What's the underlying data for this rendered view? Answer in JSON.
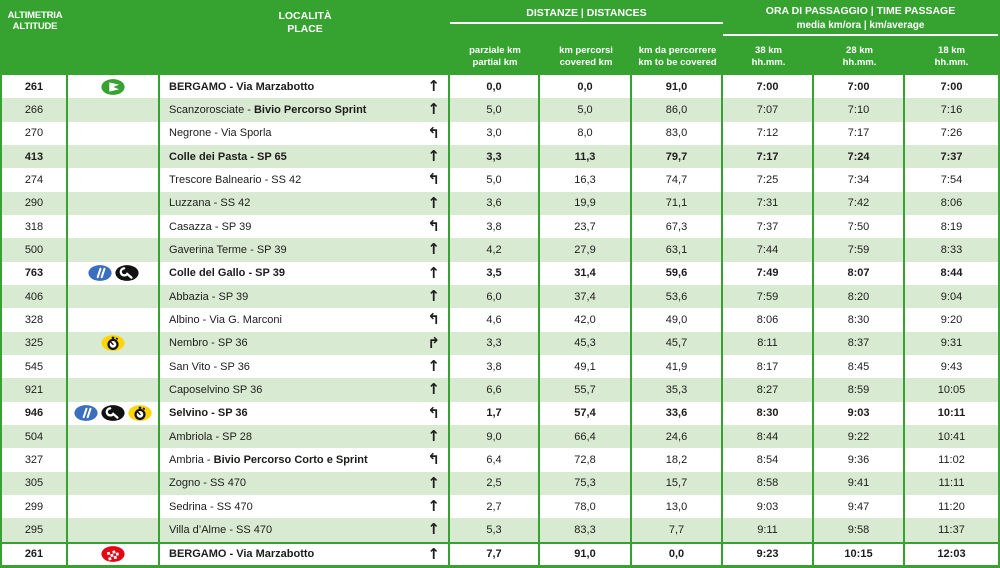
{
  "header": {
    "altitude": {
      "line1": "ALTIMETRIA",
      "line2": "ALTITUDE"
    },
    "place": {
      "line1": "LOCALITÀ",
      "line2": "PLACE"
    },
    "distances": {
      "title": "DISTANZE | DISTANCES",
      "cols": [
        {
          "l1": "parziale km",
          "l2": "partial km"
        },
        {
          "l1": "km percorsi",
          "l2": "covered km"
        },
        {
          "l1": "km da percorrere",
          "l2": "km to be covered"
        }
      ]
    },
    "times": {
      "title": "ORA DI PASSAGGIO | TIME PASSAGE",
      "subtitle": "media km/ora | km/average",
      "cols": [
        {
          "l1": "38 km",
          "l2": "hh.mm."
        },
        {
          "l1": "28 km",
          "l2": "hh.mm."
        },
        {
          "l1": "18 km",
          "l2": "hh.mm."
        }
      ]
    }
  },
  "icons": {
    "arrows": {
      "straight": "↑",
      "turn-left": "↰",
      "turn-right": "↱"
    },
    "badges": {
      "start": "start-flag-icon",
      "refreshment": "refreshment-icon",
      "mechanical": "mechanical-assistance-icon",
      "timing": "timing-icon",
      "finish": "finish-flag-icon"
    }
  },
  "colors": {
    "header_green": "#36a331",
    "row_alt": "#d9ead2",
    "border_green": "#36a331",
    "badge_blue": "#3a6fbf",
    "badge_yellow": "#ffd500",
    "badge_red": "#e30613",
    "badge_black": "#111111",
    "badge_green": "#36a331"
  },
  "table": {
    "rows": [
      {
        "altitude": "261",
        "badges": [
          "start"
        ],
        "place": "BERGAMO - Via Marzabotto",
        "place_bold": "",
        "arrow": "straight",
        "partial": "0,0",
        "covered": "0,0",
        "to_cover": "91,0",
        "t38": "7:00",
        "t28": "7:00",
        "t18": "7:00",
        "bold": true
      },
      {
        "altitude": "266",
        "badges": [],
        "place": "Scanzorosciate - ",
        "place_bold": "Bivio Percorso Sprint",
        "arrow": "straight",
        "partial": "5,0",
        "covered": "5,0",
        "to_cover": "86,0",
        "t38": "7:07",
        "t28": "7:10",
        "t18": "7:16",
        "bold": false
      },
      {
        "altitude": "270",
        "badges": [],
        "place": "Negrone - Via Sporla",
        "place_bold": "",
        "arrow": "turn-left",
        "partial": "3,0",
        "covered": "8,0",
        "to_cover": "83,0",
        "t38": "7:12",
        "t28": "7:17",
        "t18": "7:26",
        "bold": false
      },
      {
        "altitude": "413",
        "badges": [],
        "place": "Colle dei Pasta - SP 65",
        "place_bold": "",
        "arrow": "straight",
        "partial": "3,3",
        "covered": "11,3",
        "to_cover": "79,7",
        "t38": "7:17",
        "t28": "7:24",
        "t18": "7:37",
        "bold": true
      },
      {
        "altitude": "274",
        "badges": [],
        "place": "Trescore Balneario - SS 42",
        "place_bold": "",
        "arrow": "turn-left",
        "partial": "5,0",
        "covered": "16,3",
        "to_cover": "74,7",
        "t38": "7:25",
        "t28": "7:34",
        "t18": "7:54",
        "bold": false
      },
      {
        "altitude": "290",
        "badges": [],
        "place": "Luzzana - SS 42",
        "place_bold": "",
        "arrow": "straight",
        "partial": "3,6",
        "covered": "19,9",
        "to_cover": "71,1",
        "t38": "7:31",
        "t28": "7:42",
        "t18": "8:06",
        "bold": false
      },
      {
        "altitude": "318",
        "badges": [],
        "place": "Casazza - SP 39",
        "place_bold": "",
        "arrow": "turn-left",
        "partial": "3,8",
        "covered": "23,7",
        "to_cover": "67,3",
        "t38": "7:37",
        "t28": "7:50",
        "t18": "8:19",
        "bold": false
      },
      {
        "altitude": "500",
        "badges": [],
        "place": "Gaverina Terme - SP 39",
        "place_bold": "",
        "arrow": "straight",
        "partial": "4,2",
        "covered": "27,9",
        "to_cover": "63,1",
        "t38": "7:44",
        "t28": "7:59",
        "t18": "8:33",
        "bold": false
      },
      {
        "altitude": "763",
        "badges": [
          "refreshment",
          "mechanical"
        ],
        "place": "Colle del Gallo - SP 39",
        "place_bold": "",
        "arrow": "straight",
        "partial": "3,5",
        "covered": "31,4",
        "to_cover": "59,6",
        "t38": "7:49",
        "t28": "8:07",
        "t18": "8:44",
        "bold": true
      },
      {
        "altitude": "406",
        "badges": [],
        "place": "Abbazia - SP 39",
        "place_bold": "",
        "arrow": "straight",
        "partial": "6,0",
        "covered": "37,4",
        "to_cover": "53,6",
        "t38": "7:59",
        "t28": "8:20",
        "t18": "9:04",
        "bold": false
      },
      {
        "altitude": "328",
        "badges": [],
        "place": "Albino - Via G. Marconi",
        "place_bold": "",
        "arrow": "turn-left",
        "partial": "4,6",
        "covered": "42,0",
        "to_cover": "49,0",
        "t38": "8:06",
        "t28": "8:30",
        "t18": "9:20",
        "bold": false
      },
      {
        "altitude": "325",
        "badges": [
          "timing"
        ],
        "place": "Nembro - SP 36",
        "place_bold": "",
        "arrow": "turn-right",
        "partial": "3,3",
        "covered": "45,3",
        "to_cover": "45,7",
        "t38": "8:11",
        "t28": "8:37",
        "t18": "9:31",
        "bold": false
      },
      {
        "altitude": "545",
        "badges": [],
        "place": "San Vito - SP 36",
        "place_bold": "",
        "arrow": "straight",
        "partial": "3,8",
        "covered": "49,1",
        "to_cover": "41,9",
        "t38": "8:17",
        "t28": "8:45",
        "t18": "9:43",
        "bold": false
      },
      {
        "altitude": "921",
        "badges": [],
        "place": "Caposelvino SP 36",
        "place_bold": "",
        "arrow": "straight",
        "partial": "6,6",
        "covered": "55,7",
        "to_cover": "35,3",
        "t38": "8:27",
        "t28": "8:59",
        "t18": "10:05",
        "bold": false
      },
      {
        "altitude": "946",
        "badges": [
          "refreshment",
          "mechanical",
          "timing"
        ],
        "place": "Selvino - SP 36",
        "place_bold": "",
        "arrow": "turn-left",
        "partial": "1,7",
        "covered": "57,4",
        "to_cover": "33,6",
        "t38": "8:30",
        "t28": "9:03",
        "t18": "10:11",
        "bold": true
      },
      {
        "altitude": "504",
        "badges": [],
        "place": "Ambriola - SP 28",
        "place_bold": "",
        "arrow": "straight",
        "partial": "9,0",
        "covered": "66,4",
        "to_cover": "24,6",
        "t38": "8:44",
        "t28": "9:22",
        "t18": "10:41",
        "bold": false
      },
      {
        "altitude": "327",
        "badges": [],
        "place": "Ambria - ",
        "place_bold": "Bivio Percorso Corto e Sprint",
        "arrow": "turn-left",
        "partial": "6,4",
        "covered": "72,8",
        "to_cover": "18,2",
        "t38": "8:54",
        "t28": "9:36",
        "t18": "11:02",
        "bold": false
      },
      {
        "altitude": "305",
        "badges": [],
        "place": "Zogno - SS 470",
        "place_bold": "",
        "arrow": "straight",
        "partial": "2,5",
        "covered": "75,3",
        "to_cover": "15,7",
        "t38": "8:58",
        "t28": "9:41",
        "t18": "11:11",
        "bold": false
      },
      {
        "altitude": "299",
        "badges": [],
        "place": "Sedrina - SS 470",
        "place_bold": "",
        "arrow": "straight",
        "partial": "2,7",
        "covered": "78,0",
        "to_cover": "13,0",
        "t38": "9:03",
        "t28": "9:47",
        "t18": "11:20",
        "bold": false
      },
      {
        "altitude": "295",
        "badges": [],
        "place": "Villa d’Alme - SS 470",
        "place_bold": "",
        "arrow": "straight",
        "partial": "5,3",
        "covered": "83,3",
        "to_cover": "7,7",
        "t38": "9:11",
        "t28": "9:58",
        "t18": "11:37",
        "bold": false
      },
      {
        "altitude": "261",
        "badges": [
          "finish"
        ],
        "place": "BERGAMO - Via Marzabotto",
        "place_bold": "",
        "arrow": "straight",
        "partial": "7,7",
        "covered": "91,0",
        "to_cover": "0,0",
        "t38": "9:23",
        "t28": "10:15",
        "t18": "12:03",
        "bold": true
      }
    ]
  }
}
